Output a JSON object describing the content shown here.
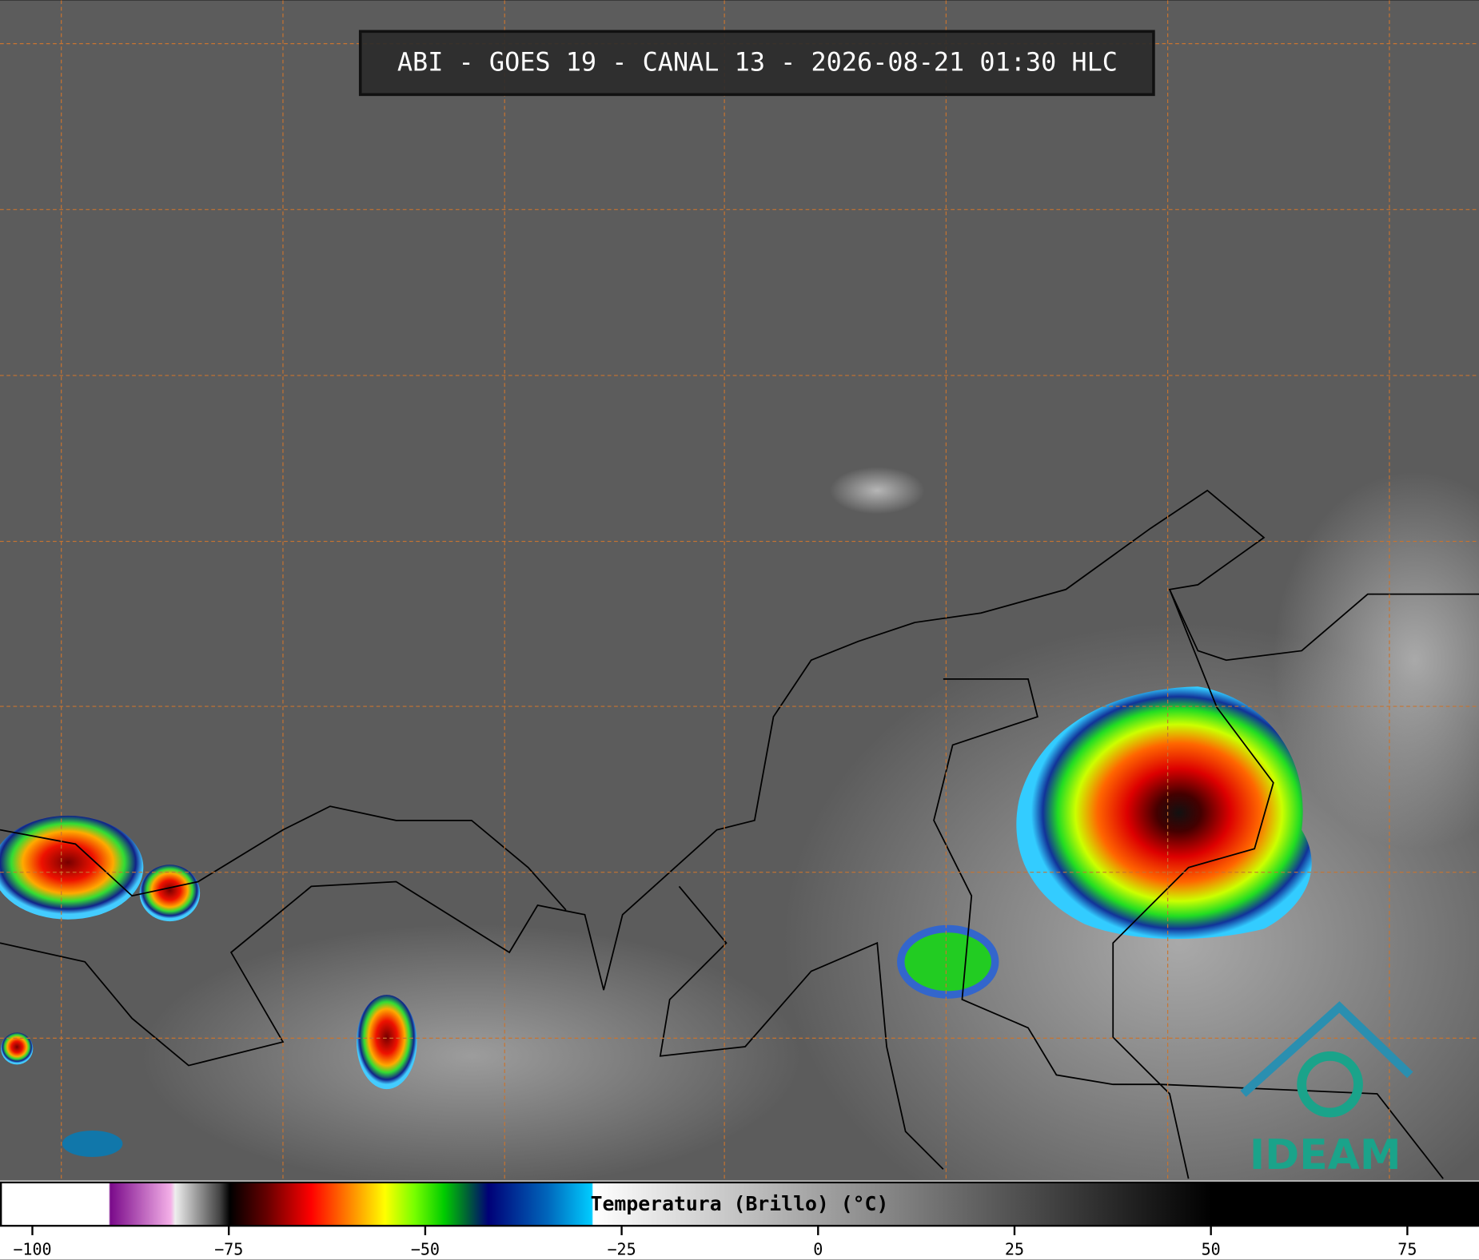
{
  "header": {
    "title": "ABI - GOES 19 - CANAL 13 - 2026-08-21 01:30 HLC"
  },
  "logo": {
    "text": "IDEAM"
  },
  "colorbar": {
    "label": "Temperatura (Brillo) (°C)",
    "range": [
      -104,
      84
    ],
    "ticks": [
      {
        "value": -100,
        "label": "−100"
      },
      {
        "value": -75,
        "label": "−75"
      },
      {
        "value": -50,
        "label": "−50"
      },
      {
        "value": -25,
        "label": "−25"
      },
      0,
      25,
      50,
      75
    ]
  }
}
